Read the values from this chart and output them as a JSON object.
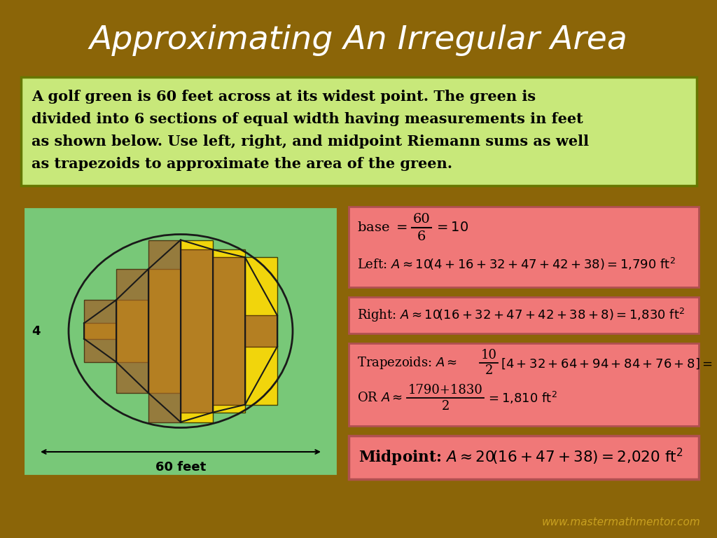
{
  "title": "Approximating An Irregular Area",
  "title_color": "#FFFFFF",
  "title_fontsize": 34,
  "bg_color": "#8B6508",
  "problem_text_line1": "A golf green is 60 feet across at its widest point. The green is",
  "problem_text_line2": "divided into 6 sections of equal width having measurements in feet",
  "problem_text_line3": "as shown below. Use left, right, and midpoint Riemann sums as well",
  "problem_text_line4": "as trapezoids to approximate the area of the green.",
  "problem_box_color": "#C8E87A",
  "problem_text_color": "#000000",
  "problem_fontsize": 15,
  "green_box_color": "#78C878",
  "riemann_box_color": "#F07878",
  "section_heights": [
    4,
    16,
    32,
    47,
    42,
    38,
    8
  ],
  "yellow_color": "#FFD700",
  "brown_color": "#A0622A",
  "ellipse_color": "#1A1A1A",
  "watermark": "www.mastermathmentor.com",
  "watermark_color": "#C8A020"
}
